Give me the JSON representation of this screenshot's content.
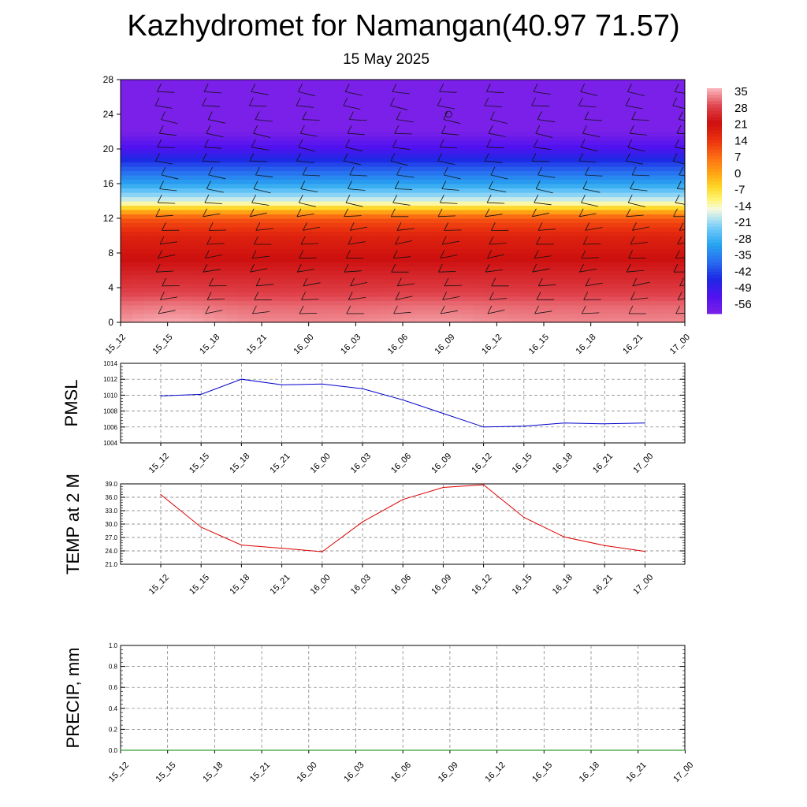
{
  "title": "Kazhydromet for Namangan(40.97 71.57)",
  "subtitle": "15 May 2025",
  "colorbar": {
    "labels": [
      "35",
      "28",
      "21",
      "14",
      "7",
      "0",
      "-7",
      "-14",
      "-21",
      "-28",
      "-35",
      "-42",
      "-49",
      "-56"
    ]
  },
  "chart_data": [
    {
      "type": "heatmap",
      "title": "",
      "xlabel": "",
      "ylabel": "",
      "x_ticks": [
        "15_12",
        "15_15",
        "15_18",
        "15_21",
        "16_00",
        "16_03",
        "16_06",
        "16_09",
        "16_12",
        "16_15",
        "16_18",
        "16_21",
        "17_00"
      ],
      "y_ticks": [
        0,
        4,
        8,
        12,
        16,
        20,
        24,
        28
      ],
      "ylim": [
        0,
        28
      ],
      "color_scale": [
        -56,
        35
      ],
      "levels_y": [
        0,
        2,
        4,
        6,
        8,
        10,
        12,
        13,
        14,
        16,
        18,
        20,
        21,
        22,
        23,
        24,
        26,
        28
      ],
      "layer_values": [
        32,
        30,
        26,
        23,
        20,
        17,
        10,
        -2,
        -15,
        -28,
        -38,
        -48,
        -52,
        -56,
        -56,
        -56,
        -56,
        -56
      ],
      "surface_highs": [
        {
          "x": 0.3,
          "value": 34
        },
        {
          "x": 4.3,
          "value": 22
        },
        {
          "x": 6.8,
          "value": 33
        },
        {
          "x": 12.0,
          "value": 23
        }
      ],
      "overlay": "wind barbs",
      "annotation_symbol": "calm circle near 16_06 at level 24"
    },
    {
      "type": "line",
      "ylabel": "PMSL",
      "x": [
        "15_12",
        "15_15",
        "15_18",
        "15_21",
        "16_00",
        "16_03",
        "16_06",
        "16_09",
        "16_12",
        "16_15",
        "16_18",
        "16_21",
        "17_00"
      ],
      "y_ticks": [
        1004,
        1006,
        1008,
        1010,
        1012,
        1014
      ],
      "ylim": [
        1004,
        1014
      ],
      "grid": true,
      "color": "#0000cc",
      "values": [
        1009.9,
        1010.1,
        1012.0,
        1011.3,
        1011.4,
        1010.8,
        1009.4,
        1007.7,
        1006.0,
        1006.1,
        1006.5,
        1006.4,
        1006.5
      ]
    },
    {
      "type": "line",
      "ylabel": "TEMP at 2 M",
      "x": [
        "15_12",
        "15_15",
        "15_18",
        "15_21",
        "16_00",
        "16_03",
        "16_06",
        "16_09",
        "16_12",
        "16_15",
        "16_18",
        "16_21",
        "17_00"
      ],
      "y_ticks": [
        "21.0",
        "24.0",
        "27.0",
        "30.0",
        "33.0",
        "36.0",
        "39.0"
      ],
      "ylim": [
        21,
        39
      ],
      "grid": true,
      "color": "#dd0000",
      "values": [
        36.6,
        29.3,
        25.3,
        24.6,
        23.8,
        30.5,
        35.5,
        38.2,
        38.8,
        31.5,
        27.1,
        25.2,
        23.9
      ]
    },
    {
      "type": "line",
      "ylabel": "PRECIP, mm",
      "x": [
        "15_12",
        "15_15",
        "15_18",
        "15_21",
        "16_00",
        "16_03",
        "16_06",
        "16_09",
        "16_12",
        "16_15",
        "16_18",
        "16_21",
        "17_00"
      ],
      "y_ticks": [
        "0.0",
        "0.2",
        "0.4",
        "0.6",
        "0.8",
        "1.0"
      ],
      "ylim": [
        0,
        1
      ],
      "grid": true,
      "color": "#008800",
      "values": [
        0,
        0,
        0,
        0,
        0,
        0,
        0,
        0,
        0,
        0,
        0,
        0,
        0
      ]
    }
  ]
}
